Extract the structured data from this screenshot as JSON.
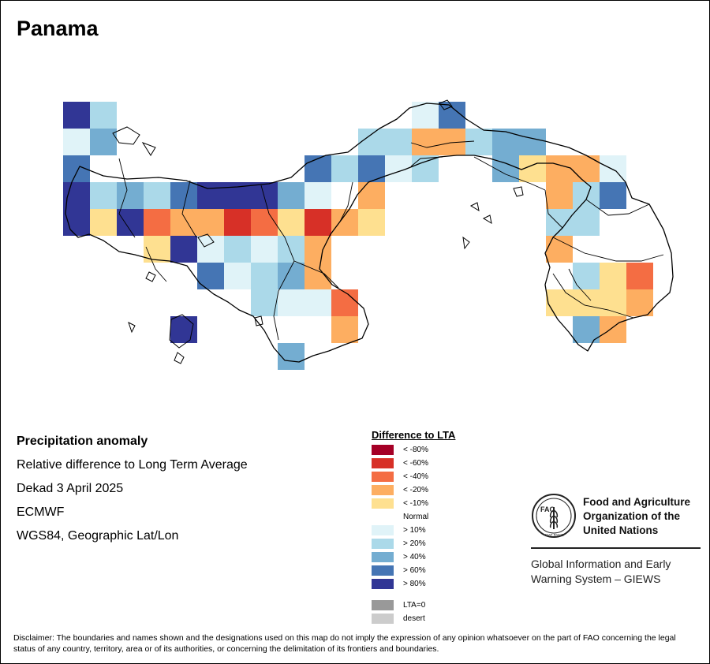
{
  "title": "Panama",
  "meta": {
    "line1": "Precipitation anomaly",
    "line2": "Relative difference to Long Term Average",
    "line3": "Dekad 3 April 2025",
    "line4": "ECMWF",
    "line5": "WGS84, Geographic Lat/Lon"
  },
  "legend": {
    "title": "Difference to LTA",
    "items": [
      {
        "label": "< -80%",
        "color": "#a50026"
      },
      {
        "label": "< -60%",
        "color": "#d73027"
      },
      {
        "label": "< -40%",
        "color": "#f46d43"
      },
      {
        "label": "< -20%",
        "color": "#fdae61"
      },
      {
        "label": "< -10%",
        "color": "#fee090"
      },
      {
        "label": "Normal",
        "color": "#ffffff"
      },
      {
        "label": "> 10%",
        "color": "#e0f3f8"
      },
      {
        "label": "> 20%",
        "color": "#abd9e9"
      },
      {
        "label": "> 40%",
        "color": "#74add1"
      },
      {
        "label": "> 60%",
        "color": "#4575b4"
      },
      {
        "label": "> 80%",
        "color": "#313695"
      }
    ],
    "extra": [
      {
        "label": "LTA=0",
        "color": "#999999"
      },
      {
        "label": "desert",
        "color": "#cccccc"
      }
    ]
  },
  "org": {
    "name": "Food and Agriculture Organization of the United Nations",
    "system": "Global Information and Early Warning System – GIEWS",
    "logo_text": "FAO",
    "motto": "FIAT PANIS"
  },
  "disclaimer": "Disclaimer: The boundaries and names shown and the designations used on this map do not imply the expression of any opinion whatsoever on the part of FAO concerning the legal status of any country, territory, area or of its authorities, or concerning the delimitation of its frontiers and boundaries."
}
